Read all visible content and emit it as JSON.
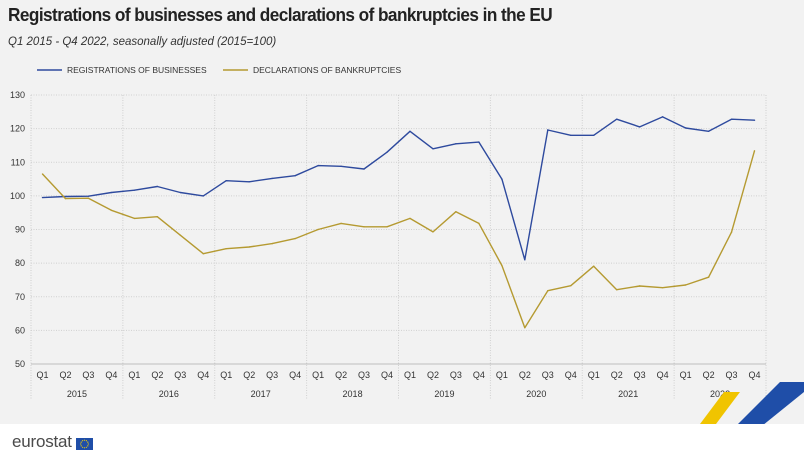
{
  "page": {
    "title": "Registrations of businesses and declarations of bankruptcies in the EU",
    "subtitle": "Q1 2015 - Q4 2022, seasonally adjusted  (2015=100)",
    "logo_text": "eurostat"
  },
  "chart_data": {
    "type": "line",
    "title": "Registrations of businesses and declarations of bankruptcies in the EU",
    "subtitle": "Q1 2015 - Q4 2022, seasonally adjusted  (2015=100)",
    "xlabel": "",
    "ylabel": "",
    "ylim": [
      50,
      130
    ],
    "yticks": [
      50,
      60,
      70,
      80,
      90,
      100,
      110,
      120,
      130
    ],
    "grid": true,
    "legend_position": "top",
    "quarters": [
      "Q1",
      "Q2",
      "Q3",
      "Q4"
    ],
    "years": [
      "2015",
      "2016",
      "2017",
      "2018",
      "2019",
      "2020",
      "2021",
      "2022"
    ],
    "categories": [
      "2015Q1",
      "2015Q2",
      "2015Q3",
      "2015Q4",
      "2016Q1",
      "2016Q2",
      "2016Q3",
      "2016Q4",
      "2017Q1",
      "2017Q2",
      "2017Q3",
      "2017Q4",
      "2018Q1",
      "2018Q2",
      "2018Q3",
      "2018Q4",
      "2019Q1",
      "2019Q2",
      "2019Q3",
      "2019Q4",
      "2020Q1",
      "2020Q2",
      "2020Q3",
      "2020Q4",
      "2021Q1",
      "2021Q2",
      "2021Q3",
      "2021Q4",
      "2022Q1",
      "2022Q2",
      "2022Q3",
      "2022Q4"
    ],
    "series": [
      {
        "name": "REGISTRATIONS OF BUSINESSES",
        "color": "#2e4a9e",
        "values": [
          99.5,
          99.8,
          99.9,
          101.0,
          101.7,
          102.8,
          101.0,
          100.0,
          104.5,
          104.2,
          105.2,
          106.0,
          109.0,
          108.8,
          108.0,
          113.0,
          119.2,
          114.0,
          115.5,
          116.0,
          105.0,
          81.0,
          119.6,
          118.0,
          118.0,
          122.8,
          120.5,
          123.5,
          120.2,
          119.2,
          122.8,
          122.5
        ]
      },
      {
        "name": "DECLARATIONS OF BANKRUPTCIES",
        "color": "#b59a31",
        "values": [
          106.5,
          99.2,
          99.3,
          95.7,
          93.3,
          93.8,
          88.3,
          82.8,
          84.3,
          84.8,
          85.8,
          87.3,
          90.0,
          91.8,
          90.8,
          90.8,
          93.3,
          89.3,
          95.3,
          91.8,
          79.3,
          60.8,
          71.8,
          73.3,
          79.1,
          72.1,
          73.2,
          72.7,
          73.5,
          75.8,
          89.2,
          113.4
        ]
      }
    ]
  }
}
